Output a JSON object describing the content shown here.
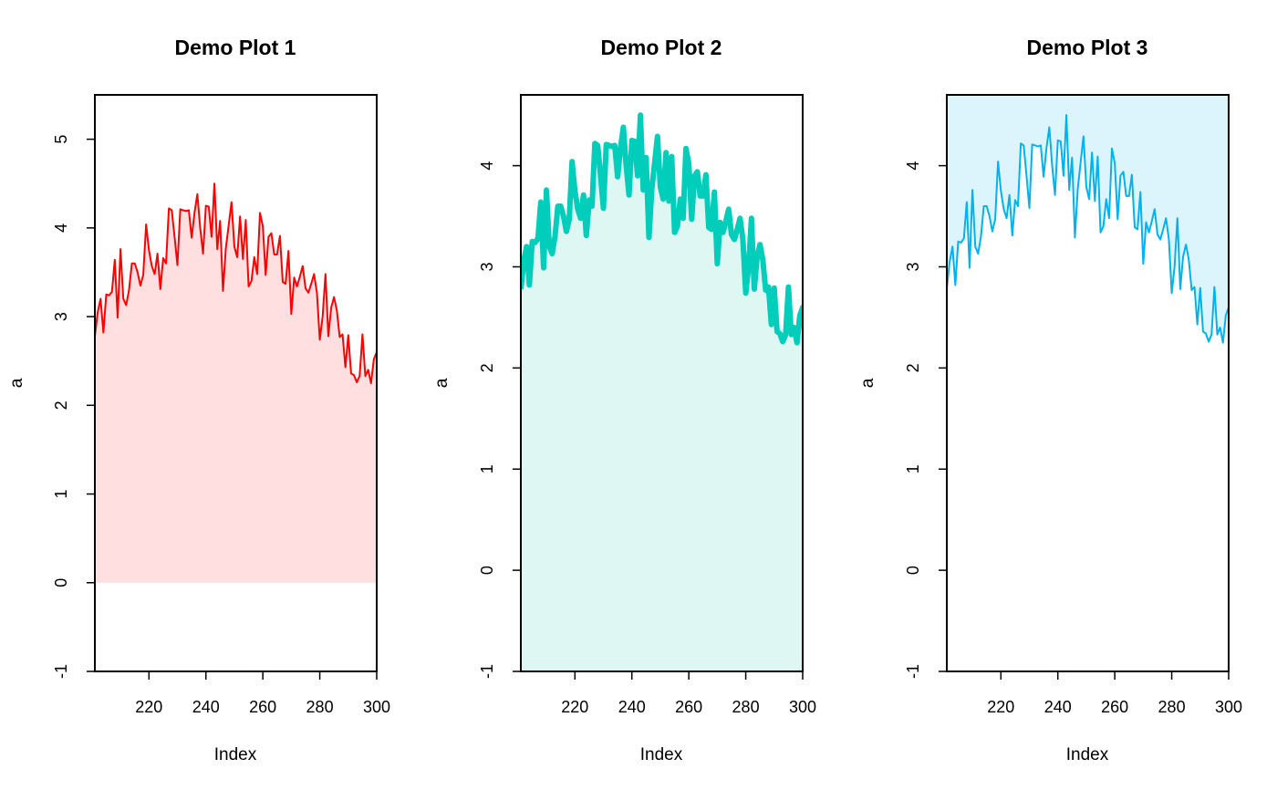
{
  "chart_data": [
    {
      "type": "area",
      "title": "Demo Plot 1",
      "xlabel": "Index",
      "ylabel": "a",
      "xlim": [
        201,
        300
      ],
      "ylim": [
        -1,
        5.5
      ],
      "fill_baseline": 0,
      "xticks": [
        220,
        240,
        260,
        280,
        300
      ],
      "yticks": [
        -1,
        0,
        1,
        2,
        3,
        4,
        5
      ],
      "line_color": "#ff0000",
      "fill_color": "#ffdfdf",
      "line_width": 2
    },
    {
      "type": "area",
      "title": "Demo Plot 2",
      "xlabel": "Index",
      "ylabel": "a",
      "xlim": [
        201,
        300
      ],
      "ylim": [
        -1,
        4.7
      ],
      "fill_baseline": -1,
      "xticks": [
        220,
        240,
        260,
        280,
        300
      ],
      "yticks": [
        -1,
        0,
        1,
        2,
        3,
        4
      ],
      "line_color": "#00cdba",
      "fill_color": "#dff7f3",
      "line_width": 6
    },
    {
      "type": "area",
      "title": "Demo Plot 3",
      "xlabel": "Index",
      "ylabel": "a",
      "xlim": [
        201,
        300
      ],
      "ylim": [
        -1,
        4.7
      ],
      "fill_baseline": 4.7,
      "xticks": [
        220,
        240,
        260,
        280,
        300
      ],
      "yticks": [
        -1,
        0,
        1,
        2,
        3,
        4
      ],
      "line_color": "#00b2ee",
      "fill_color": "#dcf5fc",
      "line_width": 2
    }
  ],
  "series": {
    "x_start": 201,
    "values": [
      2.78,
      3.05,
      3.2,
      2.82,
      3.25,
      3.24,
      3.28,
      3.64,
      2.99,
      3.76,
      3.2,
      3.13,
      3.3,
      3.6,
      3.6,
      3.5,
      3.35,
      3.47,
      4.04,
      3.75,
      3.57,
      3.48,
      3.71,
      3.31,
      3.66,
      3.6,
      4.22,
      4.2,
      3.9,
      3.58,
      4.21,
      4.2,
      4.19,
      4.2,
      3.89,
      4.17,
      4.38,
      4.0,
      3.71,
      4.25,
      4.24,
      3.9,
      4.5,
      3.76,
      4.08,
      3.29,
      3.77,
      4.03,
      4.29,
      3.79,
      3.67,
      4.13,
      3.65,
      4.09,
      3.34,
      3.4,
      3.67,
      3.48,
      4.17,
      4.02,
      3.47,
      3.9,
      3.94,
      3.7,
      3.7,
      3.91,
      3.39,
      3.37,
      3.74,
      3.03,
      3.44,
      3.34,
      3.45,
      3.57,
      3.32,
      3.27,
      3.37,
      3.48,
      3.27,
      2.74,
      3.0,
      3.48,
      2.78,
      3.1,
      3.22,
      3.07,
      2.77,
      2.8,
      2.43,
      2.79,
      2.36,
      2.34,
      2.26,
      2.33,
      2.8,
      2.33,
      2.4,
      2.25,
      2.52,
      2.6,
      2.24
    ]
  }
}
